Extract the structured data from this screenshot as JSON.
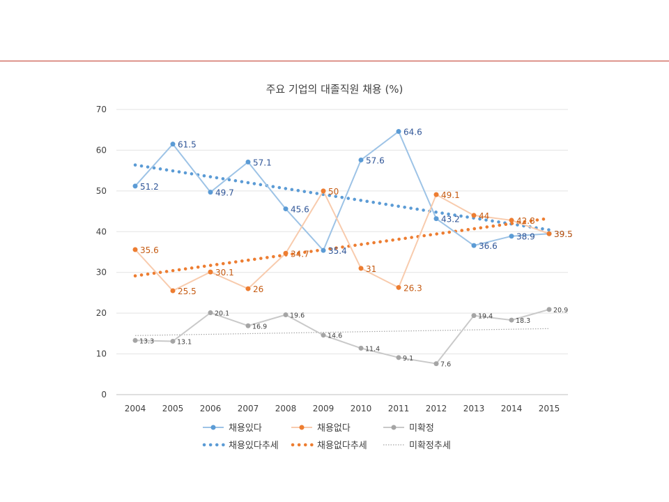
{
  "chart_data": {
    "type": "line",
    "title": "주요 기업의 대졸직원 채용 (%)",
    "xlabel": "",
    "ylabel": "",
    "x": [
      "2004",
      "2005",
      "2006",
      "2007",
      "2008",
      "2009",
      "2010",
      "2011",
      "2012",
      "2013",
      "2014",
      "2015"
    ],
    "ylim": [
      0,
      70
    ],
    "yticks": [
      0,
      10,
      20,
      30,
      40,
      50,
      60,
      70
    ],
    "grid": true,
    "legend_position": "bottom",
    "series": [
      {
        "name": "채용있다",
        "values": [
          51.2,
          61.5,
          49.7,
          57.1,
          45.6,
          35.4,
          57.6,
          64.6,
          43.2,
          36.6,
          38.9,
          39.5
        ],
        "labels": [
          "51.2",
          "61.5",
          "49.7",
          "57.1",
          "45.6",
          "35.4",
          "57.6",
          "64.6",
          "43.2",
          "36.6",
          "38.9",
          "39.5"
        ],
        "color": "#9dc3e6",
        "marker_color": "#5b9bd5"
      },
      {
        "name": "채용없다",
        "values": [
          35.6,
          25.5,
          30.1,
          26,
          34.7,
          50,
          31,
          26.3,
          49.1,
          44,
          42.8,
          39.5
        ],
        "labels": [
          "35.6",
          "25.5",
          "30.1",
          "26",
          "34.7",
          "50",
          "31",
          "26.3",
          "49.1",
          "44",
          "42.8",
          "39.5"
        ],
        "color": "#f8cbad",
        "marker_color": "#ed7d31"
      },
      {
        "name": "미확정",
        "values": [
          13.3,
          13.1,
          20.1,
          16.9,
          19.6,
          14.6,
          11.4,
          9.1,
          7.6,
          19.4,
          18.3,
          20.9
        ],
        "labels": [
          "13.3",
          "13.1",
          "20.1",
          "16.9",
          "19.6",
          "14.6",
          "11.4",
          "9.1",
          "7.6",
          "19.4",
          "18.3",
          "20.9"
        ],
        "color": "#c9c9c9",
        "marker_color": "#a5a5a5"
      }
    ],
    "trendlines": [
      {
        "name": "채용있다추세",
        "of": "채용있다",
        "color": "#5b9bd5",
        "style": "dotted-round"
      },
      {
        "name": "채용없다추세",
        "of": "채용없다",
        "color": "#ed7d31",
        "style": "dotted-round"
      },
      {
        "name": "미확정추세",
        "of": "미확정",
        "color": "#a5a5a5",
        "style": "dotted-thin"
      }
    ]
  }
}
